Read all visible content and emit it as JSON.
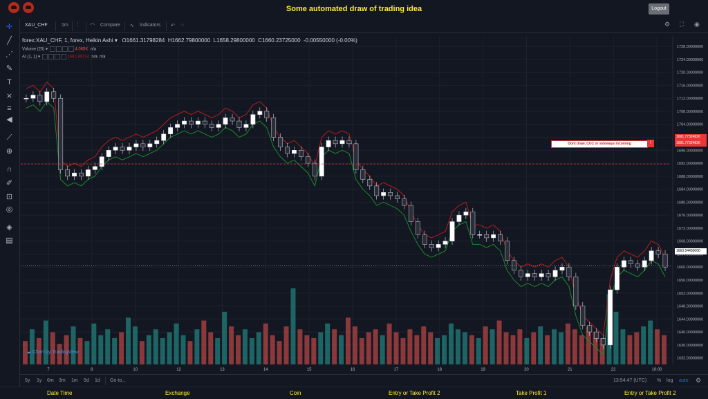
{
  "app": {
    "title": "Some automated draw of trading idea",
    "logout_label": "Logout"
  },
  "toolbar": {
    "symbol": "XAU_CHF",
    "interval": "1m",
    "compare_label": "Compare",
    "indicators_label": "Indicators"
  },
  "legend": {
    "main": "forex:XAU_CHF, 1, forex, Heikin Ashi ▾",
    "open": "O1661.31798284",
    "high": "H1662.79800000",
    "low": "L1658.29800000",
    "close": "C1660.23725000",
    "change": "-0.00550000 (-0.00%)",
    "volume_label": "Volume (20) ▾",
    "volume_value": "4.065K",
    "volume_na": "n/a",
    "ai_label": "AI (1, 1) ▾",
    "ai_value": "1661.99724",
    "ai_na1": "n/a",
    "ai_na2": "n/a"
  },
  "annotation": {
    "text": "Dont draw, CUC or sideways incoming",
    "icon": "!"
  },
  "price_labels": {
    "upper": "1691.77324826",
    "lower": "1691.77324826",
    "current": "1660.54450000"
  },
  "watermark": "Chart by TradingView",
  "bottom": {
    "ranges": [
      "5y",
      "1y",
      "6m",
      "3m",
      "1m",
      "5d",
      "1d"
    ],
    "goto": "Go to...",
    "time": "13:54:47 (UTC)",
    "percent": "%",
    "log": "log",
    "auto": "auto"
  },
  "footer": [
    "Date Time",
    "Exchange",
    "Coin",
    "Entry or Take Profit 2",
    "Take Profit 1",
    "Entry or Take Profit 2"
  ],
  "colors": {
    "bull": "#ffffff",
    "bear": "#2a2e39",
    "vol_up": "#26a69a",
    "vol_down": "#ef5350",
    "upper_band": "#b71c1c",
    "lower_band": "#1b8a2a",
    "accent": "#ffeb3b"
  },
  "chart_data": {
    "type": "line",
    "title": "forex:XAU_CHF, 1, forex, Heikin Ashi",
    "x_ticks": [
      "7",
      "8",
      "10",
      "12",
      "13",
      "14",
      "15",
      "16",
      "17",
      "18",
      "19",
      "20",
      "21",
      "22",
      "10:00"
    ],
    "y_ticks": [
      1728,
      1724,
      1720,
      1716,
      1712,
      1708,
      1704,
      1700,
      1696,
      1692,
      1688,
      1684,
      1680,
      1676,
      1672,
      1668,
      1664,
      1660,
      1656,
      1652,
      1648,
      1644,
      1640,
      1636,
      1632
    ],
    "ylim": [
      1630,
      1731
    ],
    "price_path": [
      1712,
      1713,
      1711,
      1714,
      1712,
      1690,
      1688,
      1689,
      1688,
      1690,
      1691,
      1694,
      1696,
      1697,
      1696,
      1697,
      1698,
      1697,
      1698,
      1699,
      1701,
      1703,
      1704,
      1705,
      1704,
      1705,
      1704,
      1703,
      1704,
      1706,
      1705,
      1703,
      1704,
      1707,
      1708,
      1706,
      1700,
      1697,
      1695,
      1696,
      1694,
      1692,
      1688,
      1697,
      1699,
      1698,
      1699,
      1698,
      1690,
      1687,
      1685,
      1682,
      1683,
      1682,
      1681,
      1679,
      1674,
      1670,
      1667,
      1666,
      1667,
      1668,
      1674,
      1676,
      1677,
      1670,
      1670,
      1669,
      1670,
      1668,
      1662,
      1659,
      1657,
      1658,
      1657,
      1658,
      1657,
      1659,
      1660,
      1657,
      1648,
      1642,
      1640,
      1638,
      1636,
      1653,
      1660,
      1662,
      1661,
      1660,
      1662,
      1665,
      1664,
      1660
    ],
    "volumes": [
      8,
      12,
      9,
      15,
      11,
      7,
      10,
      13,
      9,
      8,
      14,
      10,
      12,
      9,
      11,
      16,
      13,
      8,
      10,
      12,
      9,
      11,
      14,
      10,
      8,
      12,
      15,
      11,
      9,
      18,
      13,
      10,
      12,
      9,
      11,
      14,
      10,
      8,
      13,
      26,
      12,
      10,
      9,
      11,
      14,
      12,
      10,
      16,
      13,
      9,
      11,
      12,
      10,
      14,
      11,
      9,
      12,
      10,
      13,
      11,
      9,
      10,
      14,
      12,
      11,
      10,
      9,
      13,
      12,
      15,
      11,
      10,
      12,
      9,
      11,
      13,
      10,
      12,
      11,
      14,
      12,
      10,
      13,
      11,
      9,
      24,
      18,
      12,
      10,
      11,
      13,
      15,
      12,
      10
    ]
  }
}
